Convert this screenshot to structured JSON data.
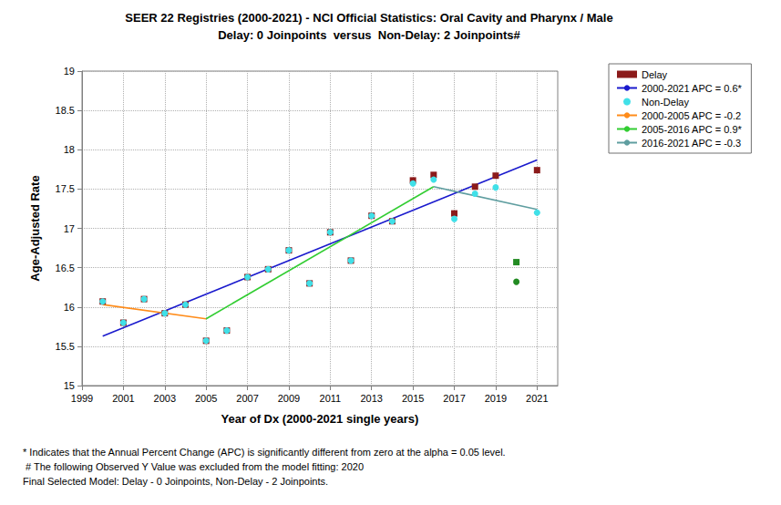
{
  "chart_data": {
    "type": "scatter",
    "title": "SEER 22 Registries (2000-2021) - NCI Official Statistics: Oral Cavity and Pharynx / Male",
    "subtitle": "Delay: 0 Joinpoints  versus  Non-Delay: 2 Joinpoints#",
    "x_label": "Year of Dx (2000-2021 single years)",
    "y_label": "Age-Adjusted Rate",
    "annotations": [
      "* Indicates that the Annual Percent Change (APC) is significantly different from zero at the alpha = 0.05 level.",
      " # The following Observed Y Value was excluded from the model fitting: 2020",
      "Final Selected Model: Delay - 0 Joinpoints, Non-Delay - 2 Joinpoints."
    ],
    "x": [
      2000,
      2001,
      2002,
      2003,
      2004,
      2005,
      2006,
      2007,
      2008,
      2009,
      2010,
      2011,
      2012,
      2013,
      2014,
      2015,
      2016,
      2017,
      2018,
      2019,
      2020,
      2021
    ],
    "xlim": [
      1999,
      2022
    ],
    "xticks": [
      1999,
      2001,
      2003,
      2005,
      2007,
      2009,
      2011,
      2013,
      2015,
      2017,
      2019,
      2021
    ],
    "ylim": [
      15,
      19
    ],
    "yticks": [
      15,
      15.5,
      16,
      16.5,
      17,
      17.5,
      18,
      18.5,
      19
    ],
    "grid": true,
    "legend": "right",
    "series": [
      {
        "name": "Delay",
        "type": "scatter",
        "marker": "square",
        "color": "#8b1a1a",
        "colors": [
          "#8b1a1a",
          "#8b1a1a",
          "#8b1a1a",
          "#8b1a1a",
          "#8b1a1a",
          "#8b1a1a",
          "#8b1a1a",
          "#8b1a1a",
          "#8b1a1a",
          "#8b1a1a",
          "#8b1a1a",
          "#8b1a1a",
          "#8b1a1a",
          "#8b1a1a",
          "#8b1a1a",
          "#8b1a1a",
          "#8b1a1a",
          "#8b1a1a",
          "#8b1a1a",
          "#8b1a1a",
          "#228b22",
          "#8b1a1a"
        ],
        "values": [
          16.07,
          15.8,
          16.1,
          15.92,
          16.03,
          15.57,
          15.7,
          16.38,
          16.48,
          16.72,
          16.3,
          16.95,
          16.59,
          17.16,
          17.09,
          17.61,
          17.68,
          17.19,
          17.53,
          17.67,
          16.57,
          17.74
        ]
      },
      {
        "name": "2000-2021 APC = 0.6*",
        "type": "line",
        "color": "#1a1acd",
        "line_style": "solid",
        "x": [
          2000,
          2021
        ],
        "values": [
          15.63,
          17.87
        ]
      },
      {
        "name": "Non-Delay",
        "type": "scatter",
        "marker": "circle",
        "color": "#40e0e8",
        "colors": [
          "#40e0e8",
          "#40e0e8",
          "#40e0e8",
          "#40e0e8",
          "#40e0e8",
          "#40e0e8",
          "#40e0e8",
          "#40e0e8",
          "#40e0e8",
          "#40e0e8",
          "#40e0e8",
          "#40e0e8",
          "#40e0e8",
          "#40e0e8",
          "#40e0e8",
          "#40e0e8",
          "#40e0e8",
          "#40e0e8",
          "#40e0e8",
          "#40e0e8",
          "#228b22",
          "#40e0e8"
        ],
        "values": [
          16.07,
          15.8,
          16.1,
          15.92,
          16.03,
          15.57,
          15.7,
          16.38,
          16.48,
          16.72,
          16.3,
          16.95,
          16.59,
          17.16,
          17.09,
          17.57,
          17.62,
          17.12,
          17.44,
          17.52,
          16.32,
          17.2
        ]
      },
      {
        "name": "2000-2005 APC = -0.2",
        "type": "line",
        "color": "#ff8c1a",
        "line_style": "solid",
        "x": [
          2000,
          2005
        ],
        "values": [
          16.03,
          15.85
        ]
      },
      {
        "name": "2005-2016 APC = 0.9*",
        "type": "line",
        "color": "#32cd32",
        "line_style": "solid",
        "x": [
          2005,
          2016
        ],
        "values": [
          15.85,
          17.53
        ]
      },
      {
        "name": "2016-2021 APC = -0.3",
        "type": "line",
        "color": "#5f9ea0",
        "line_style": "solid",
        "x": [
          2016,
          2021
        ],
        "values": [
          17.53,
          17.24
        ]
      }
    ]
  }
}
